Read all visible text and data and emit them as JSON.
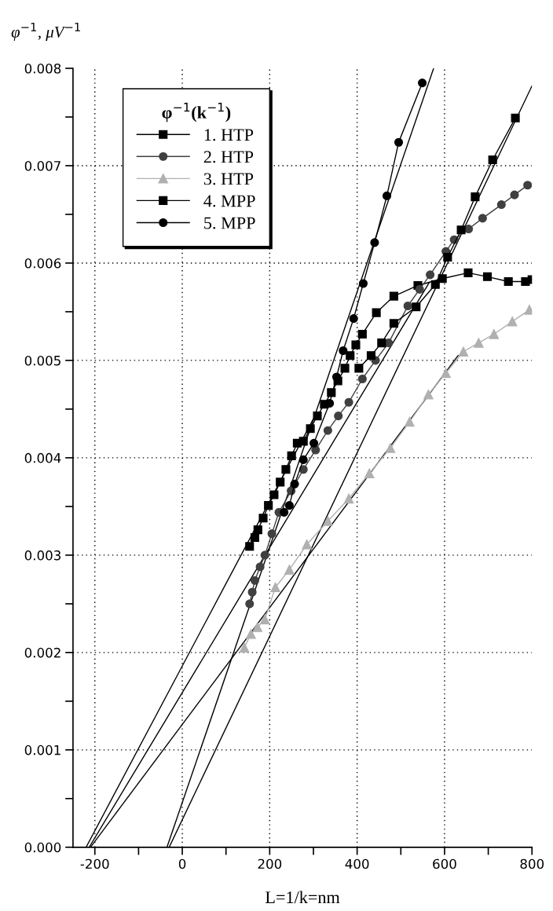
{
  "chart_data": {
    "type": "line",
    "xlabel": "L=1/k=nm",
    "ylabel": "φ$^{−1}$, μV$^{−1}$",
    "legend_title": "φ$^{−1}$(k$^{−1}$)",
    "xlim": [
      -250,
      800
    ],
    "xticks": [
      -200,
      {
        "value": -100,
        "label": null
      },
      0,
      {
        "value": 100,
        "label": null
      },
      200,
      {
        "value": 300,
        "label": null
      },
      400,
      {
        "value": 500,
        "label": null
      },
      600,
      {
        "value": 700,
        "label": null
      },
      800
    ],
    "ylim": [
      0,
      0.008
    ],
    "yticks": [
      {
        "value": 0,
        "label": "0.000"
      },
      {
        "value": 0.0005,
        "label": null
      },
      {
        "value": 0.001,
        "label": "0.001"
      },
      {
        "value": 0.0015,
        "label": null
      },
      {
        "value": 0.002,
        "label": "0.002"
      },
      {
        "value": 0.0025,
        "label": null
      },
      {
        "value": 0.003,
        "label": "0.003"
      },
      {
        "value": 0.0035,
        "label": null
      },
      {
        "value": 0.004,
        "label": "0.004"
      },
      {
        "value": 0.0045,
        "label": null
      },
      {
        "value": 0.005,
        "label": "0.005"
      },
      {
        "value": 0.0055,
        "label": null
      },
      {
        "value": 0.006,
        "label": "0.006"
      },
      {
        "value": 0.0065,
        "label": null
      },
      {
        "value": 0.007,
        "label": "0.007"
      },
      {
        "value": 0.0075,
        "label": null
      },
      {
        "value": 0.008,
        "label": "0.008"
      }
    ],
    "grid": true,
    "legend": "top left",
    "series": [
      {
        "name": "1. HTP",
        "color": "#000000",
        "marker": "square",
        "x": [
          154,
          166,
          173,
          185,
          197,
          210,
          224,
          237,
          250,
          263,
          277,
          293,
          309,
          325,
          341,
          356,
          372,
          384,
          397,
          412,
          444,
          484,
          539,
          595,
          654,
          698,
          746,
          785,
          800
        ],
        "values": [
          0.00309,
          0.00318,
          0.00326,
          0.00338,
          0.00351,
          0.00362,
          0.00375,
          0.00388,
          0.00402,
          0.00415,
          0.00417,
          0.0043,
          0.00443,
          0.00455,
          0.00467,
          0.00479,
          0.00492,
          0.00505,
          0.00516,
          0.00527,
          0.00549,
          0.00566,
          0.00577,
          0.00584,
          0.0059,
          0.00586,
          0.00581,
          0.00581,
          0.00583
        ]
      },
      {
        "name": "2. HTP",
        "color": "#404040",
        "marker": "circle",
        "x": [
          154,
          160,
          166,
          178,
          189,
          205,
          221,
          249,
          277,
          305,
          333,
          357,
          381,
          412,
          442,
          472,
          516,
          543,
          567,
          603,
          622,
          655,
          687,
          730,
          760,
          790
        ],
        "values": [
          0.0025,
          0.00262,
          0.00274,
          0.00288,
          0.003,
          0.00322,
          0.00344,
          0.00366,
          0.00388,
          0.00408,
          0.00428,
          0.00443,
          0.00457,
          0.00481,
          0.005,
          0.00518,
          0.00556,
          0.00573,
          0.00588,
          0.00612,
          0.00624,
          0.00635,
          0.00646,
          0.0066,
          0.0067,
          0.0068
        ]
      },
      {
        "name": "3. HTP",
        "color": "#b0b0b0",
        "marker": "triangle",
        "x": [
          142,
          157,
          172,
          189,
          213,
          245,
          285,
          333,
          381,
          428,
          476,
          520,
          563,
          603,
          643,
          678,
          713,
          755,
          794
        ],
        "values": [
          0.00205,
          0.00219,
          0.00226,
          0.00234,
          0.00267,
          0.00285,
          0.00311,
          0.00335,
          0.00358,
          0.00384,
          0.0041,
          0.00437,
          0.00465,
          0.00487,
          0.00509,
          0.00518,
          0.00527,
          0.0054,
          0.00552
        ]
      },
      {
        "name": "4. MPP",
        "color": "#000000",
        "marker": "square",
        "x": [
          404,
          432,
          456,
          484,
          535,
          579,
          607,
          638,
          670,
          710,
          762
        ],
        "values": [
          0.00492,
          0.00505,
          0.00518,
          0.00538,
          0.00555,
          0.00578,
          0.00606,
          0.00634,
          0.00668,
          0.00706,
          0.00749
        ]
      },
      {
        "name": "5. MPP",
        "color": "#000000",
        "marker": "circle",
        "x": [
          233,
          245,
          257,
          277,
          301,
          337,
          353,
          368,
          392,
          414,
          440,
          468,
          495,
          549
        ],
        "values": [
          0.00344,
          0.00351,
          0.00373,
          0.00398,
          0.00415,
          0.00456,
          0.00483,
          0.0051,
          0.00543,
          0.00579,
          0.00621,
          0.00669,
          0.00724,
          0.00785
        ]
      },
      {
        "color": "#000000",
        "marker": "none",
        "x": [
          -220,
          300
        ],
        "values": [
          0,
          0.0044
        ]
      },
      {
        "color": "#000000",
        "marker": "none",
        "x": [
          -213,
          565
        ],
        "values": [
          0,
          0.0058
        ]
      },
      {
        "color": "#000000",
        "marker": "none",
        "x": [
          -210,
          631
        ],
        "values": [
          0,
          0.00505
        ]
      },
      {
        "color": "#000000",
        "marker": "none",
        "x": [
          -30,
          800
        ],
        "values": [
          0,
          0.00782
        ]
      },
      {
        "color": "#000000",
        "marker": "none",
        "x": [
          -35,
          575
        ],
        "values": [
          0,
          0.008
        ]
      }
    ]
  }
}
